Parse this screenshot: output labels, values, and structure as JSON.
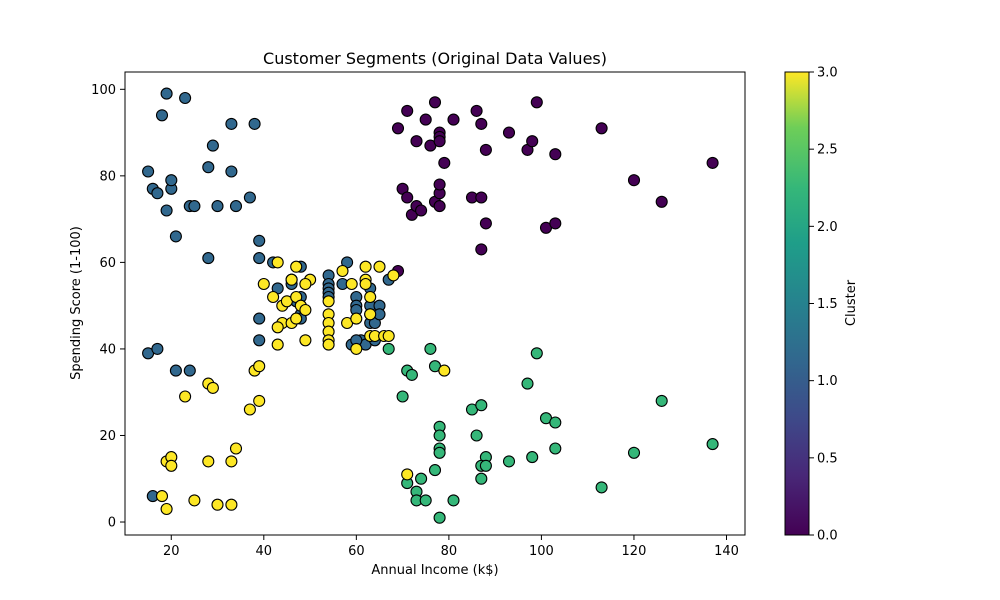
{
  "chart_data": {
    "type": "scatter",
    "title": "Customer Segments (Original Data Values)",
    "xlabel": "Annual Income (k$)",
    "ylabel": "Spending Score (1-100)",
    "xlim": [
      10,
      144
    ],
    "ylim": [
      -3,
      104
    ],
    "xticks": [
      20,
      40,
      60,
      80,
      100,
      120,
      140
    ],
    "yticks": [
      0,
      20,
      40,
      60,
      80,
      100
    ],
    "grid": false,
    "colorbar": {
      "label": "Cluster",
      "range": [
        0,
        3
      ],
      "ticks": [
        "0.0",
        "0.5",
        "1.0",
        "1.5",
        "2.0",
        "2.5",
        "3.0"
      ],
      "colormap": "viridis"
    },
    "cluster_colors": {
      "0": "#440154",
      "1": "#31688e",
      "2": "#35b779",
      "3": "#fde725"
    },
    "points": [
      [
        69,
        91,
        0
      ],
      [
        71,
        95,
        0
      ],
      [
        73,
        88,
        0
      ],
      [
        75,
        93,
        0
      ],
      [
        76,
        87,
        0
      ],
      [
        77,
        97,
        0
      ],
      [
        78,
        90,
        0
      ],
      [
        78,
        89,
        0
      ],
      [
        78,
        88,
        0
      ],
      [
        81,
        93,
        0
      ],
      [
        86,
        95,
        0
      ],
      [
        87,
        92,
        0
      ],
      [
        88,
        86,
        0
      ],
      [
        93,
        90,
        0
      ],
      [
        97,
        86,
        0
      ],
      [
        98,
        88,
        0
      ],
      [
        99,
        97,
        0
      ],
      [
        103,
        85,
        0
      ],
      [
        113,
        91,
        0
      ],
      [
        79,
        83,
        0
      ],
      [
        70,
        77,
        0
      ],
      [
        71,
        75,
        0
      ],
      [
        72,
        71,
        0
      ],
      [
        73,
        73,
        0
      ],
      [
        74,
        72,
        0
      ],
      [
        77,
        74,
        0
      ],
      [
        78,
        73,
        0
      ],
      [
        78,
        76,
        0
      ],
      [
        78,
        78,
        0
      ],
      [
        85,
        75,
        0
      ],
      [
        87,
        75,
        0
      ],
      [
        88,
        69,
        0
      ],
      [
        87,
        63,
        0
      ],
      [
        101,
        68,
        0
      ],
      [
        103,
        69,
        0
      ],
      [
        120,
        79,
        0
      ],
      [
        126,
        74,
        0
      ],
      [
        137,
        83,
        0
      ],
      [
        69,
        58,
        0
      ],
      [
        19,
        99,
        1
      ],
      [
        23,
        98,
        1
      ],
      [
        18,
        94,
        1
      ],
      [
        33,
        92,
        1
      ],
      [
        38,
        92,
        1
      ],
      [
        29,
        87,
        1
      ],
      [
        15,
        81,
        1
      ],
      [
        28,
        82,
        1
      ],
      [
        33,
        81,
        1
      ],
      [
        16,
        77,
        1
      ],
      [
        20,
        77,
        1
      ],
      [
        17,
        76,
        1
      ],
      [
        20,
        79,
        1
      ],
      [
        19,
        72,
        1
      ],
      [
        24,
        73,
        1
      ],
      [
        25,
        73,
        1
      ],
      [
        30,
        73,
        1
      ],
      [
        34,
        73,
        1
      ],
      [
        37,
        75,
        1
      ],
      [
        21,
        66,
        1
      ],
      [
        28,
        61,
        1
      ],
      [
        39,
        65,
        1
      ],
      [
        39,
        61,
        1
      ],
      [
        15,
        39,
        1
      ],
      [
        17,
        40,
        1
      ],
      [
        21,
        35,
        1
      ],
      [
        24,
        35,
        1
      ],
      [
        16,
        6,
        1
      ],
      [
        42,
        60,
        1
      ],
      [
        43,
        54,
        1
      ],
      [
        46,
        56,
        1
      ],
      [
        46,
        55,
        1
      ],
      [
        47,
        51,
        1
      ],
      [
        48,
        59,
        1
      ],
      [
        48,
        52,
        1
      ],
      [
        48,
        48,
        1
      ],
      [
        48,
        47,
        1
      ],
      [
        39,
        47,
        1
      ],
      [
        39,
        42,
        1
      ],
      [
        54,
        57,
        1
      ],
      [
        54,
        55,
        1
      ],
      [
        54,
        54,
        1
      ],
      [
        54,
        53,
        1
      ],
      [
        54,
        52,
        1
      ],
      [
        57,
        55,
        1
      ],
      [
        58,
        60,
        1
      ],
      [
        60,
        52,
        1
      ],
      [
        60,
        50,
        1
      ],
      [
        60,
        49,
        1
      ],
      [
        61,
        42,
        1
      ],
      [
        62,
        41,
        1
      ],
      [
        63,
        54,
        1
      ],
      [
        63,
        50,
        1
      ],
      [
        63,
        48,
        1
      ],
      [
        63,
        46,
        1
      ],
      [
        64,
        46,
        1
      ],
      [
        64,
        42,
        1
      ],
      [
        65,
        50,
        1
      ],
      [
        65,
        48,
        1
      ],
      [
        67,
        56,
        1
      ],
      [
        59,
        41,
        1
      ],
      [
        60,
        42,
        1
      ],
      [
        76,
        40,
        2
      ],
      [
        71,
        35,
        2
      ],
      [
        72,
        34,
        2
      ],
      [
        77,
        36,
        2
      ],
      [
        70,
        29,
        2
      ],
      [
        67,
        40,
        2
      ],
      [
        97,
        32,
        2
      ],
      [
        99,
        39,
        2
      ],
      [
        85,
        26,
        2
      ],
      [
        87,
        27,
        2
      ],
      [
        86,
        20,
        2
      ],
      [
        78,
        22,
        2
      ],
      [
        78,
        20,
        2
      ],
      [
        78,
        17,
        2
      ],
      [
        78,
        16,
        2
      ],
      [
        101,
        24,
        2
      ],
      [
        103,
        23,
        2
      ],
      [
        126,
        28,
        2
      ],
      [
        137,
        18,
        2
      ],
      [
        103,
        17,
        2
      ],
      [
        120,
        16,
        2
      ],
      [
        98,
        15,
        2
      ],
      [
        93,
        14,
        2
      ],
      [
        88,
        15,
        2
      ],
      [
        87,
        13,
        2
      ],
      [
        88,
        13,
        2
      ],
      [
        87,
        10,
        2
      ],
      [
        77,
        12,
        2
      ],
      [
        74,
        10,
        2
      ],
      [
        71,
        9,
        2
      ],
      [
        73,
        7,
        2
      ],
      [
        73,
        5,
        2
      ],
      [
        75,
        5,
        2
      ],
      [
        81,
        5,
        2
      ],
      [
        78,
        1,
        2
      ],
      [
        113,
        8,
        2
      ],
      [
        43,
        60,
        3
      ],
      [
        47,
        59,
        3
      ],
      [
        50,
        56,
        3
      ],
      [
        49,
        55,
        3
      ],
      [
        46,
        56,
        3
      ],
      [
        40,
        55,
        3
      ],
      [
        44,
        50,
        3
      ],
      [
        42,
        52,
        3
      ],
      [
        45,
        51,
        3
      ],
      [
        47,
        52,
        3
      ],
      [
        48,
        50,
        3
      ],
      [
        49,
        49,
        3
      ],
      [
        44,
        46,
        3
      ],
      [
        43,
        45,
        3
      ],
      [
        46,
        46,
        3
      ],
      [
        47,
        47,
        3
      ],
      [
        43,
        41,
        3
      ],
      [
        49,
        42,
        3
      ],
      [
        54,
        51,
        3
      ],
      [
        54,
        48,
        3
      ],
      [
        54,
        46,
        3
      ],
      [
        54,
        44,
        3
      ],
      [
        54,
        42,
        3
      ],
      [
        54,
        41,
        3
      ],
      [
        57,
        58,
        3
      ],
      [
        58,
        46,
        3
      ],
      [
        59,
        55,
        3
      ],
      [
        60,
        47,
        3
      ],
      [
        60,
        40,
        3
      ],
      [
        62,
        59,
        3
      ],
      [
        62,
        56,
        3
      ],
      [
        63,
        52,
        3
      ],
      [
        63,
        48,
        3
      ],
      [
        63,
        43,
        3
      ],
      [
        64,
        43,
        3
      ],
      [
        65,
        59,
        3
      ],
      [
        66,
        43,
        3
      ],
      [
        67,
        43,
        3
      ],
      [
        68,
        57,
        3
      ],
      [
        62,
        55,
        3
      ],
      [
        38,
        35,
        3
      ],
      [
        39,
        36,
        3
      ],
      [
        37,
        26,
        3
      ],
      [
        39,
        28,
        3
      ],
      [
        28,
        32,
        3
      ],
      [
        29,
        31,
        3
      ],
      [
        23,
        29,
        3
      ],
      [
        34,
        17,
        3
      ],
      [
        19,
        14,
        3
      ],
      [
        20,
        15,
        3
      ],
      [
        20,
        13,
        3
      ],
      [
        28,
        14,
        3
      ],
      [
        33,
        14,
        3
      ],
      [
        18,
        6,
        3
      ],
      [
        19,
        3,
        3
      ],
      [
        25,
        5,
        3
      ],
      [
        30,
        4,
        3
      ],
      [
        33,
        4,
        3
      ],
      [
        71,
        11,
        3
      ],
      [
        79,
        35,
        3
      ]
    ]
  }
}
